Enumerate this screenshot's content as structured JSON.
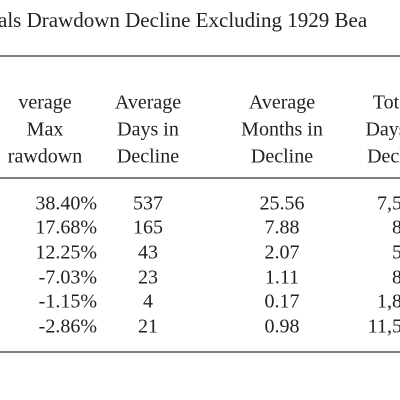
{
  "title": "als Drawdown Decline Excluding 1929 Bea",
  "table": {
    "header": [
      [
        "verage",
        "Max",
        "rawdown"
      ],
      [
        "Average",
        "Days in",
        "Decline"
      ],
      [
        "Average",
        "Months in",
        "Decline"
      ],
      [
        "Tot",
        "Days",
        "Decl"
      ]
    ],
    "rows": [
      [
        "38.40%",
        "537",
        "25.56",
        "7,5"
      ],
      [
        "17.68%",
        "165",
        "7.88",
        "8"
      ],
      [
        "12.25%",
        "43",
        "2.07",
        "5"
      ],
      [
        "-7.03%",
        "23",
        "1.11",
        "8"
      ],
      [
        "-1.15%",
        "4",
        "0.17",
        "1,8"
      ],
      [
        "-2.86%",
        "21",
        "0.98",
        "11,5"
      ]
    ]
  }
}
